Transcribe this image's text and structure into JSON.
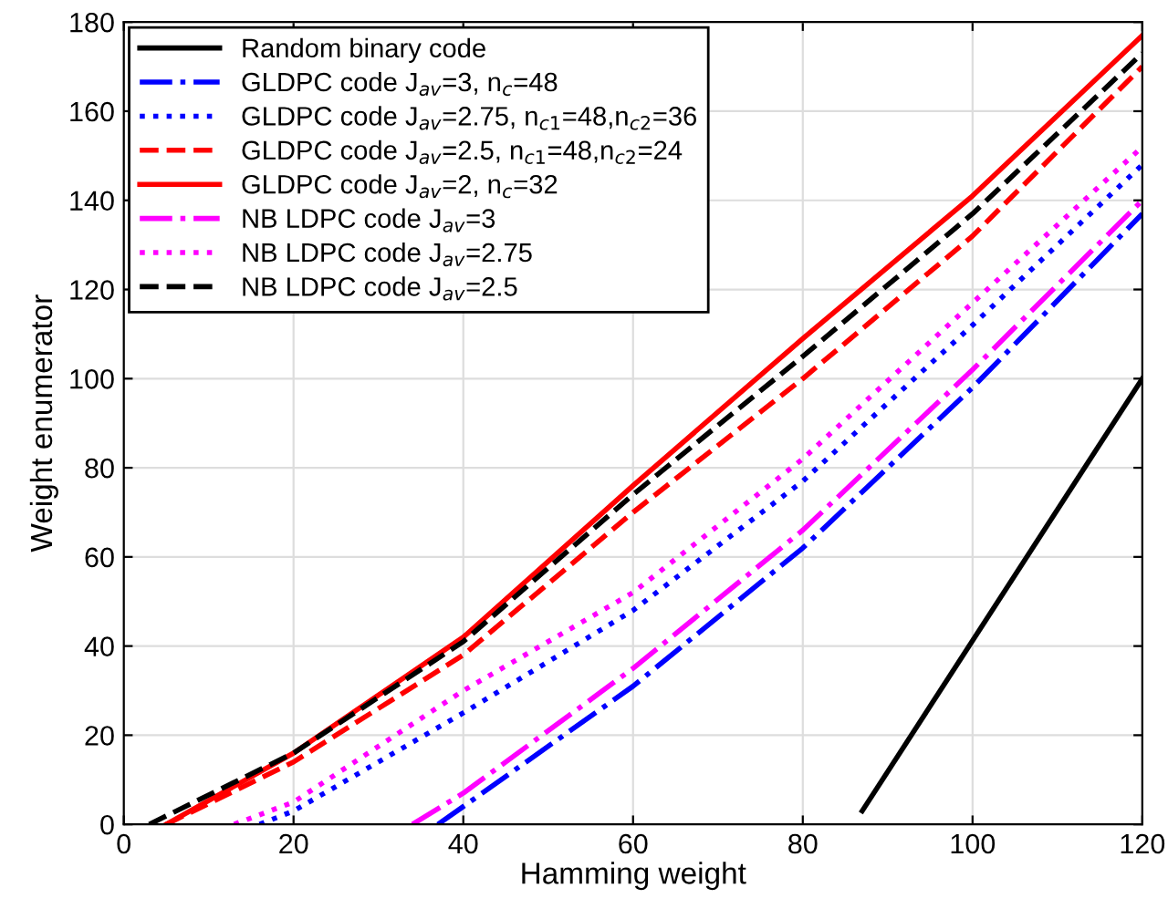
{
  "chart_data": {
    "type": "line",
    "xlabel": "Hamming weight",
    "ylabel": "Weight enumerator",
    "xlim": [
      0,
      120
    ],
    "ylim": [
      0,
      180
    ],
    "xticks": [
      0,
      20,
      40,
      60,
      80,
      100,
      120
    ],
    "yticks": [
      0,
      20,
      40,
      60,
      80,
      100,
      120,
      140,
      160,
      180
    ],
    "grid": true,
    "legend": "top left",
    "series": [
      {
        "name": "Random binary code",
        "color": "#000000",
        "line_style": "solid",
        "x": [
          87,
          120
        ],
        "values": [
          3,
          100
        ]
      },
      {
        "name": "GLDPC code J$_{av}$=3, n$_{c}$=48",
        "color": "#0000ff",
        "line_style": "dashdot",
        "x": [
          37,
          40,
          60,
          80,
          100,
          120
        ],
        "values": [
          0,
          4,
          31,
          62,
          98,
          137
        ]
      },
      {
        "name": "GLDPC code J$_{av}$=2.75, n$_{c1}$=48,n$_{c2}$=36",
        "color": "#0000ff",
        "line_style": "dotted",
        "x": [
          16,
          20,
          40,
          60,
          80,
          100,
          120
        ],
        "values": [
          0,
          3,
          25,
          48,
          77,
          112,
          148
        ]
      },
      {
        "name": "GLDPC code J$_{av}$=2.5, n$_{c1}$=48,n$_{c2}$=24",
        "color": "#ff0000",
        "line_style": "dashed",
        "x": [
          5,
          20,
          40,
          60,
          80,
          100,
          120
        ],
        "values": [
          0,
          14,
          38,
          70,
          100,
          132,
          170
        ]
      },
      {
        "name": "GLDPC code J$_{av}$=2, n$_{c}$=32",
        "color": "#ff0000",
        "line_style": "solid",
        "x": [
          5,
          20,
          40,
          60,
          80,
          100,
          120
        ],
        "values": [
          0,
          16,
          42,
          76,
          109,
          141,
          177
        ]
      },
      {
        "name": "NB LDPC code J$_{av}$=3",
        "color": "#ff00ff",
        "line_style": "dashdot",
        "x": [
          34,
          40,
          60,
          80,
          100,
          120
        ],
        "values": [
          0,
          7,
          35,
          66,
          102,
          140
        ]
      },
      {
        "name": "NB LDPC code J$_{av}$=2.75",
        "color": "#ff00ff",
        "line_style": "dotted",
        "x": [
          13,
          20,
          40,
          60,
          80,
          100,
          120
        ],
        "values": [
          0,
          5,
          30,
          52,
          82,
          117,
          152
        ]
      },
      {
        "name": "NB LDPC code J$_{av}$=2.5",
        "color": "#000000",
        "line_style": "dashed",
        "x": [
          3,
          20,
          40,
          60,
          80,
          100,
          120
        ],
        "values": [
          0,
          16,
          41,
          74,
          105,
          137,
          173
        ]
      }
    ]
  }
}
